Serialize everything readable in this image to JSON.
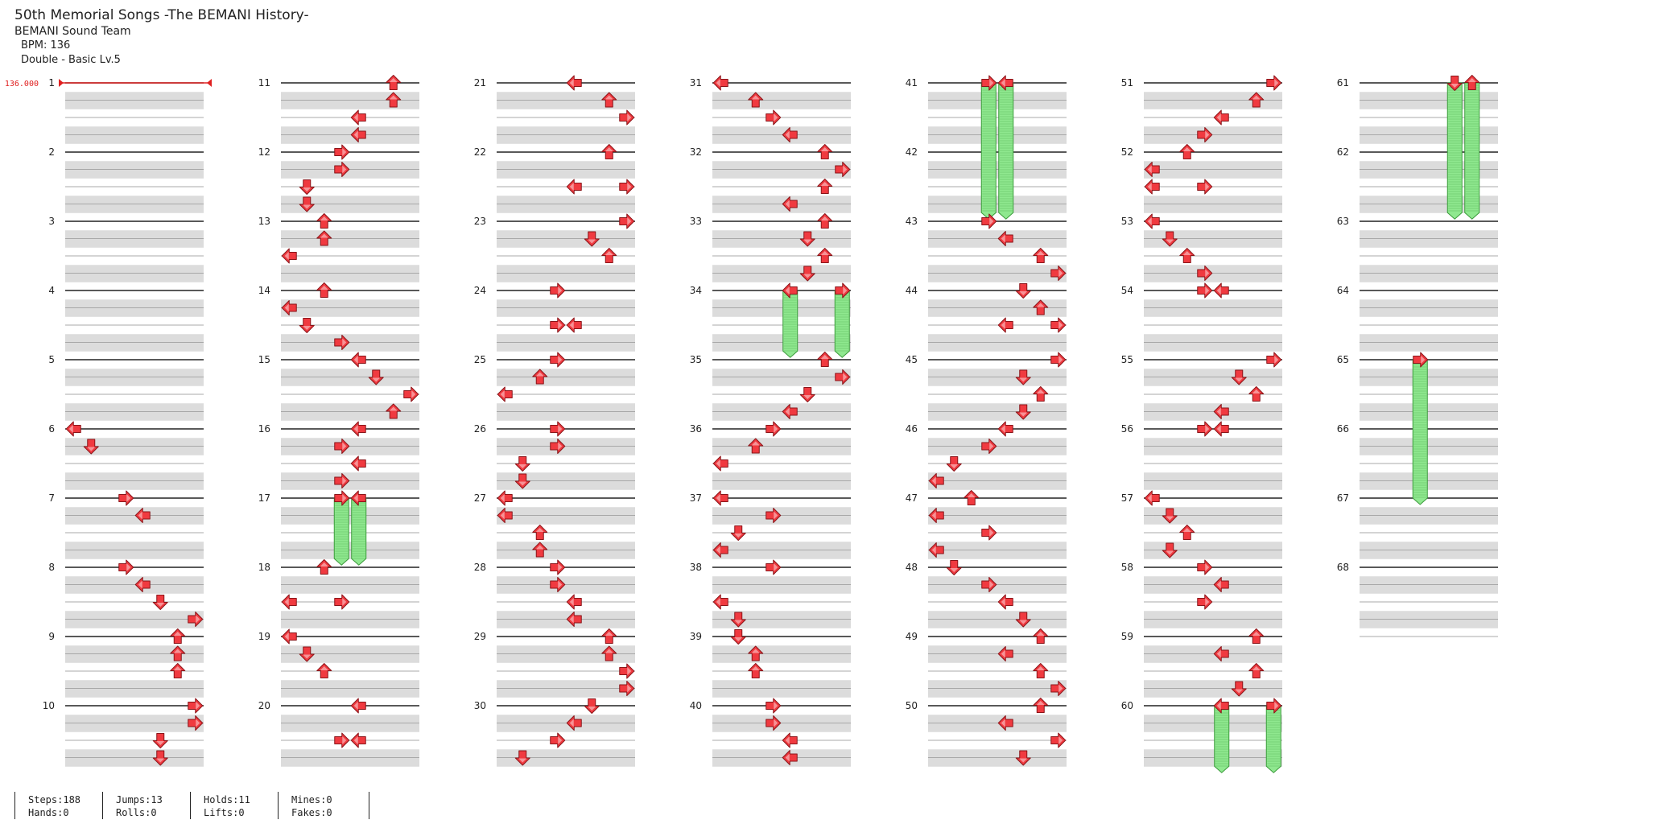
{
  "song": {
    "title": "50th Memorial Songs -The BEMANI History-",
    "artist": "BEMANI Sound Team",
    "bpm_text": "BPM: 136",
    "difficulty_text": "Double - Basic Lv.5"
  },
  "bpm_marker_label": "136.000",
  "chart_data": {
    "type": "table",
    "measures_per_column": 10,
    "total_measures": 68,
    "measure_labels": [
      "1",
      "2",
      "3",
      "4",
      "5",
      "6",
      "7",
      "8",
      "9",
      "10",
      "11",
      "12",
      "13",
      "14",
      "15",
      "16",
      "17",
      "18",
      "19",
      "20",
      "21",
      "22",
      "23",
      "24",
      "25",
      "26",
      "27",
      "28",
      "29",
      "30",
      "31",
      "32",
      "33",
      "34",
      "35",
      "36",
      "37",
      "38",
      "39",
      "40",
      "41",
      "42",
      "43",
      "44",
      "45",
      "46",
      "47",
      "48",
      "49",
      "50",
      "51",
      "52",
      "53",
      "54",
      "55",
      "56",
      "57",
      "58",
      "59",
      "60",
      "61",
      "62",
      "63",
      "64",
      "65",
      "66",
      "67",
      "68"
    ],
    "lanes": [
      "P1-left",
      "P1-down",
      "P1-up",
      "P1-right",
      "P2-left",
      "P2-down",
      "P2-up",
      "P2-right"
    ],
    "notes": [
      [
        6,
        0,
        0
      ],
      [
        6,
        1,
        1
      ],
      [
        7,
        0,
        3
      ],
      [
        7,
        1,
        4
      ],
      [
        8,
        0,
        3
      ],
      [
        8,
        1,
        4
      ],
      [
        8,
        2,
        5
      ],
      [
        8,
        3,
        7
      ],
      [
        9,
        0,
        6
      ],
      [
        9,
        1,
        6
      ],
      [
        9,
        2,
        6
      ],
      [
        10,
        0,
        7
      ],
      [
        10,
        1,
        7
      ],
      [
        10,
        2,
        5
      ],
      [
        10,
        3,
        5
      ],
      [
        11,
        0,
        6
      ],
      [
        11,
        1,
        6
      ],
      [
        11,
        2,
        4
      ],
      [
        11,
        3,
        4
      ],
      [
        12,
        0,
        3
      ],
      [
        12,
        1,
        3
      ],
      [
        12,
        2,
        1
      ],
      [
        12,
        3,
        1
      ],
      [
        13,
        0,
        2
      ],
      [
        13,
        1,
        2
      ],
      [
        13,
        2,
        0
      ],
      [
        14,
        0,
        2
      ],
      [
        14,
        1,
        0
      ],
      [
        14,
        2,
        1
      ],
      [
        14,
        3,
        3
      ],
      [
        15,
        0,
        4
      ],
      [
        15,
        1,
        5
      ],
      [
        15,
        2,
        7
      ],
      [
        15,
        3,
        6
      ],
      [
        16,
        0,
        4
      ],
      [
        16,
        1,
        3
      ],
      [
        16,
        2,
        4
      ],
      [
        16,
        3,
        3
      ],
      [
        17,
        0,
        3
      ],
      [
        17,
        0,
        4
      ],
      [
        18,
        0,
        2
      ],
      [
        18,
        2,
        0
      ],
      [
        18,
        2,
        3
      ],
      [
        19,
        0,
        0
      ],
      [
        19,
        1,
        1
      ],
      [
        19,
        2,
        2
      ],
      [
        20,
        0,
        4
      ],
      [
        20,
        2,
        3
      ],
      [
        20,
        2,
        4
      ],
      [
        21,
        0,
        4
      ],
      [
        21,
        1,
        6
      ],
      [
        21,
        2,
        7
      ],
      [
        22,
        0,
        6
      ],
      [
        22,
        2,
        4
      ],
      [
        22,
        2,
        7
      ],
      [
        23,
        0,
        7
      ],
      [
        23,
        1,
        5
      ],
      [
        23,
        2,
        6
      ],
      [
        24,
        0,
        3
      ],
      [
        24,
        2,
        3
      ],
      [
        24,
        2,
        4
      ],
      [
        25,
        0,
        3
      ],
      [
        25,
        1,
        2
      ],
      [
        25,
        2,
        0
      ],
      [
        26,
        0,
        3
      ],
      [
        26,
        1,
        3
      ],
      [
        26,
        2,
        1
      ],
      [
        26,
        3,
        1
      ],
      [
        27,
        0,
        0
      ],
      [
        27,
        1,
        0
      ],
      [
        27,
        2,
        2
      ],
      [
        27,
        3,
        2
      ],
      [
        28,
        0,
        3
      ],
      [
        28,
        1,
        3
      ],
      [
        28,
        2,
        4
      ],
      [
        28,
        3,
        4
      ],
      [
        29,
        0,
        6
      ],
      [
        29,
        1,
        6
      ],
      [
        29,
        2,
        7
      ],
      [
        29,
        3,
        7
      ],
      [
        30,
        0,
        5
      ],
      [
        30,
        1,
        4
      ],
      [
        30,
        2,
        3
      ],
      [
        30,
        3,
        1
      ],
      [
        31,
        0,
        0
      ],
      [
        31,
        1,
        2
      ],
      [
        31,
        2,
        3
      ],
      [
        31,
        3,
        4
      ],
      [
        32,
        0,
        6
      ],
      [
        32,
        1,
        7
      ],
      [
        32,
        2,
        6
      ],
      [
        32,
        3,
        4
      ],
      [
        33,
        0,
        6
      ],
      [
        33,
        1,
        5
      ],
      [
        33,
        2,
        6
      ],
      [
        33,
        3,
        5
      ],
      [
        34,
        0,
        4
      ],
      [
        34,
        0,
        7
      ],
      [
        35,
        0,
        6
      ],
      [
        35,
        1,
        7
      ],
      [
        35,
        2,
        5
      ],
      [
        35,
        3,
        4
      ],
      [
        36,
        0,
        3
      ],
      [
        36,
        1,
        2
      ],
      [
        36,
        2,
        0
      ],
      [
        37,
        0,
        0
      ],
      [
        37,
        1,
        3
      ],
      [
        37,
        2,
        1
      ],
      [
        37,
        3,
        0
      ],
      [
        38,
        0,
        3
      ],
      [
        38,
        2,
        0
      ],
      [
        38,
        3,
        1
      ],
      [
        39,
        0,
        1
      ],
      [
        39,
        1,
        2
      ],
      [
        39,
        2,
        2
      ],
      [
        40,
        0,
        3
      ],
      [
        40,
        1,
        3
      ],
      [
        40,
        2,
        4
      ],
      [
        40,
        3,
        4
      ],
      [
        41,
        0,
        3
      ],
      [
        41,
        0,
        4
      ],
      [
        43,
        0,
        3
      ],
      [
        43,
        1,
        4
      ],
      [
        43,
        2,
        6
      ],
      [
        43,
        3,
        7
      ],
      [
        44,
        0,
        5
      ],
      [
        44,
        1,
        6
      ],
      [
        44,
        2,
        4
      ],
      [
        44,
        2,
        7
      ],
      [
        45,
        0,
        7
      ],
      [
        45,
        1,
        5
      ],
      [
        45,
        2,
        6
      ],
      [
        45,
        3,
        5
      ],
      [
        46,
        0,
        4
      ],
      [
        46,
        1,
        3
      ],
      [
        46,
        2,
        1
      ],
      [
        46,
        3,
        0
      ],
      [
        47,
        0,
        2
      ],
      [
        47,
        1,
        0
      ],
      [
        47,
        2,
        3
      ],
      [
        47,
        3,
        0
      ],
      [
        48,
        0,
        1
      ],
      [
        48,
        1,
        3
      ],
      [
        48,
        2,
        4
      ],
      [
        48,
        3,
        5
      ],
      [
        49,
        0,
        6
      ],
      [
        49,
        1,
        4
      ],
      [
        49,
        2,
        6
      ],
      [
        49,
        3,
        7
      ],
      [
        50,
        0,
        6
      ],
      [
        50,
        1,
        4
      ],
      [
        50,
        2,
        7
      ],
      [
        50,
        3,
        5
      ],
      [
        51,
        0,
        7
      ],
      [
        51,
        1,
        6
      ],
      [
        51,
        2,
        4
      ],
      [
        51,
        3,
        3
      ],
      [
        52,
        0,
        2
      ],
      [
        52,
        1,
        0
      ],
      [
        52,
        2,
        0
      ],
      [
        52,
        2,
        3
      ],
      [
        53,
        0,
        0
      ],
      [
        53,
        1,
        1
      ],
      [
        53,
        2,
        2
      ],
      [
        53,
        3,
        3
      ],
      [
        54,
        0,
        3
      ],
      [
        54,
        0,
        4
      ],
      [
        55,
        0,
        7
      ],
      [
        55,
        1,
        5
      ],
      [
        55,
        2,
        6
      ],
      [
        55,
        3,
        4
      ],
      [
        56,
        0,
        3
      ],
      [
        56,
        0,
        4
      ],
      [
        57,
        0,
        0
      ],
      [
        57,
        1,
        1
      ],
      [
        57,
        2,
        2
      ],
      [
        57,
        3,
        1
      ],
      [
        58,
        0,
        3
      ],
      [
        58,
        1,
        4
      ],
      [
        58,
        2,
        3
      ],
      [
        59,
        0,
        6
      ],
      [
        59,
        1,
        4
      ],
      [
        59,
        2,
        6
      ],
      [
        59,
        3,
        5
      ],
      [
        60,
        0,
        4
      ],
      [
        60,
        0,
        7
      ],
      [
        61,
        0,
        5
      ],
      [
        61,
        0,
        6
      ],
      [
        65,
        0,
        3
      ]
    ],
    "holds": [
      [
        17,
        0,
        3,
        17,
        3.5
      ],
      [
        17,
        0,
        4,
        17,
        3.5
      ],
      [
        34,
        0,
        4,
        34,
        3.5
      ],
      [
        34,
        0,
        7,
        34,
        3.5
      ],
      [
        41,
        0,
        3,
        42,
        3.5
      ],
      [
        41,
        0,
        4,
        42,
        3.5
      ],
      [
        60,
        0,
        4,
        60,
        3.5
      ],
      [
        60,
        0,
        7,
        60,
        3.5
      ],
      [
        61,
        0,
        5,
        62,
        3.5
      ],
      [
        61,
        0,
        6,
        62,
        3.5
      ],
      [
        65,
        0,
        3,
        67,
        0
      ]
    ]
  },
  "stats": [
    {
      "line1": "Steps:188",
      "line2": "Hands:0"
    },
    {
      "line1": "Jumps:13",
      "line2": "Rolls:0"
    },
    {
      "line1": "Holds:11",
      "line2": "Lifts:0"
    },
    {
      "line1": "Mines:0",
      "line2": "Fakes:0"
    }
  ],
  "colors": {
    "arrow_fill": "#f03a40",
    "arrow_stroke": "#8a1418",
    "hold_fill": "#8fe88f",
    "hold_stroke": "#3a9a3a",
    "band_fill": "#dcdcdc",
    "bpm_red": "#e02020"
  },
  "arrow_directions": [
    "left",
    "down",
    "up",
    "right"
  ]
}
